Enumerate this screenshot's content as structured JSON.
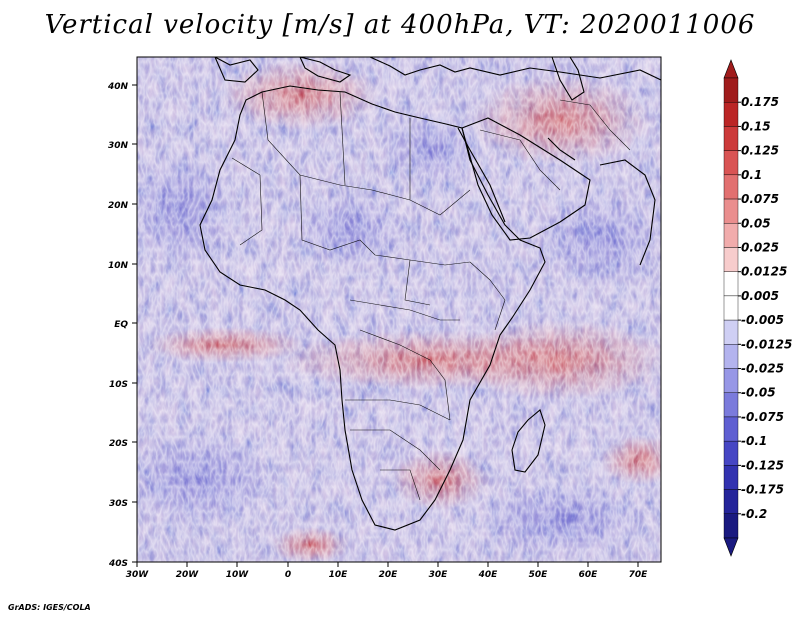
{
  "title": "Vertical velocity [m/s] at 400hPa, VT: 2020011006",
  "credit": "GrADS: IGES/COLA",
  "map": {
    "lat_labels": [
      "40N",
      "30N",
      "20N",
      "10N",
      "EQ",
      "10S",
      "20S",
      "30S",
      "40S"
    ],
    "lon_labels": [
      "30W",
      "20W",
      "10W",
      "0",
      "10E",
      "20E",
      "30E",
      "40E",
      "50E",
      "60E",
      "70E"
    ]
  },
  "colorbar": {
    "labels": [
      "0.175",
      "0.15",
      "0.125",
      "0.1",
      "0.075",
      "0.05",
      "0.025",
      "0.0125",
      "0.005",
      "-0.005",
      "-0.0125",
      "-0.025",
      "-0.05",
      "-0.075",
      "-0.1",
      "-0.125",
      "-0.175",
      "-0.2"
    ],
    "colors": [
      "#a01c1c",
      "#bb2626",
      "#cc3a3a",
      "#d95454",
      "#e27070",
      "#ea8e8e",
      "#f1acac",
      "#f7cccc",
      "#ffffff",
      "#ffffff",
      "#cfcff4",
      "#b3b3ee",
      "#9797e6",
      "#7b7bdc",
      "#5f5fd2",
      "#4646c4",
      "#3232b0",
      "#24249a",
      "#1a1a80"
    ]
  }
}
